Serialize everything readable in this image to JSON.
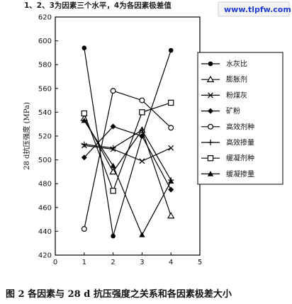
{
  "header_note": "1、2、3为因素三个水平，4为各因素极差值",
  "watermark": "www.tlpfw.com",
  "caption": "图 2   各因素与 28 d 抗压强度之关系和各因素极差大小",
  "chart_data": {
    "type": "line",
    "title": "",
    "xlabel": "",
    "ylabel": "28 d抗压强度 (MPa)",
    "x": [
      1,
      2,
      3,
      4
    ],
    "xlim": [
      0,
      5
    ],
    "ylim": [
      420,
      620
    ],
    "xticks": [
      "0",
      "1",
      "2",
      "3",
      "4",
      "5"
    ],
    "yticks": [
      "420",
      "440",
      "460",
      "480",
      "500",
      "520",
      "540",
      "560",
      "580",
      "600",
      "620"
    ],
    "grid": false,
    "legend_position": "right",
    "series": [
      {
        "name": "水灰比",
        "marker": "dot",
        "values": [
          594,
          436,
          520,
          592
        ]
      },
      {
        "name": "膨胀剂",
        "marker": "triangle-open",
        "values": [
          535,
          490,
          525,
          453
        ]
      },
      {
        "name": "粉煤灰",
        "marker": "x",
        "values": [
          512,
          509,
          499,
          510
        ]
      },
      {
        "name": "矿粉",
        "marker": "diamond",
        "values": [
          502,
          528,
          520,
          475
        ]
      },
      {
        "name": "高效剂种",
        "marker": "circle-open",
        "values": [
          442,
          558,
          550,
          527
        ]
      },
      {
        "name": "高效掺量",
        "marker": "plus",
        "values": [
          513,
          510,
          525,
          483
        ]
      },
      {
        "name": "缓凝剂种",
        "marker": "square-open",
        "values": [
          539,
          474,
          540,
          548
        ]
      },
      {
        "name": "缓凝掺量",
        "marker": "triangle",
        "values": [
          533,
          495,
          437,
          482
        ]
      }
    ]
  }
}
